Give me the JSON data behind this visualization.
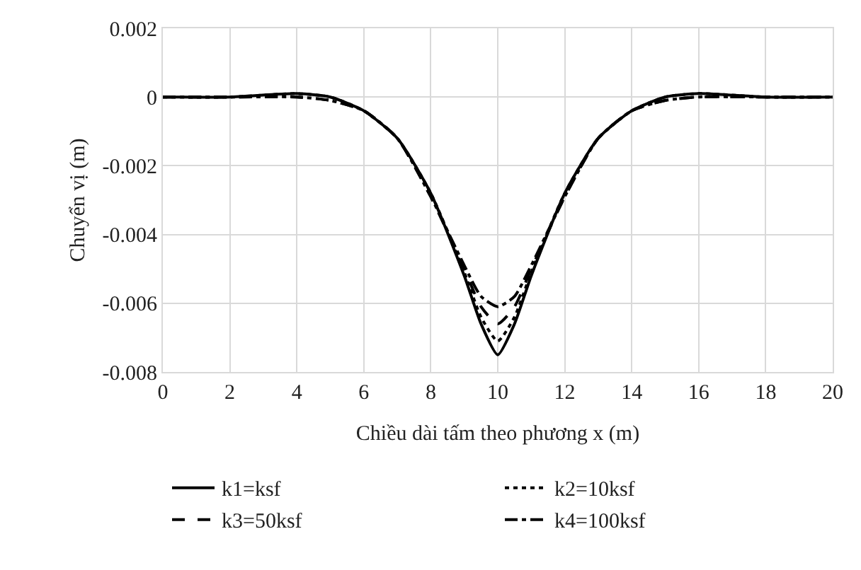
{
  "chart_data": {
    "type": "line",
    "xlabel": "Chiều dài tấm theo phương x (m)",
    "ylabel": "Chuyển vị (m)",
    "xlim": [
      0,
      20
    ],
    "xticks": [
      0,
      2,
      4,
      6,
      8,
      10,
      12,
      14,
      16,
      18,
      20
    ],
    "ylim": [
      -0.008,
      0.002
    ],
    "yticks": [
      {
        "value": -0.008,
        "label": "-0.008"
      },
      {
        "value": -0.006,
        "label": "-0.006"
      },
      {
        "value": -0.004,
        "label": "-0.004"
      },
      {
        "value": -0.002,
        "label": "-0.002"
      },
      0,
      {
        "value": 0.002,
        "label": "0.002"
      }
    ],
    "grid": true,
    "legend": "bottom",
    "marker": "none",
    "x": [
      0,
      2,
      4,
      5,
      6,
      7,
      8,
      9,
      9.5,
      10,
      10.5,
      11,
      12,
      13,
      14,
      15,
      16,
      18,
      20
    ],
    "series": [
      {
        "name": "k1=ksf",
        "color": "#000000",
        "line_style": "solid",
        "values": [
          0,
          0,
          0.0001,
          0,
          -0.0004,
          -0.0012,
          -0.0028,
          -0.0052,
          -0.0066,
          -0.0075,
          -0.0066,
          -0.0052,
          -0.0028,
          -0.0012,
          -0.0004,
          0,
          0.0001,
          0,
          0
        ]
      },
      {
        "name": "k2=10ksf",
        "color": "#000000",
        "line_style": "dotted",
        "values": [
          0,
          0,
          0.0001,
          0,
          -0.0004,
          -0.0012,
          -0.0028,
          -0.0051,
          -0.0064,
          -0.0071,
          -0.0064,
          -0.0051,
          -0.0028,
          -0.0012,
          -0.0004,
          0,
          0.0001,
          0,
          0
        ]
      },
      {
        "name": "k3=50ksf",
        "color": "#000000",
        "line_style": "dashed",
        "values": [
          0,
          0,
          0,
          -0.0001,
          -0.0004,
          -0.0012,
          -0.0029,
          -0.005,
          -0.0061,
          -0.0066,
          -0.0061,
          -0.005,
          -0.0029,
          -0.0012,
          -0.0004,
          -0.0001,
          0,
          0,
          0
        ]
      },
      {
        "name": "k4=100ksf",
        "color": "#000000",
        "line_style": "dashdot",
        "values": [
          0,
          0,
          0,
          -0.0001,
          -0.0004,
          -0.0012,
          -0.0029,
          -0.0049,
          -0.0058,
          -0.0061,
          -0.0058,
          -0.0049,
          -0.0029,
          -0.0012,
          -0.0004,
          -0.0001,
          0,
          0,
          0
        ]
      }
    ]
  }
}
